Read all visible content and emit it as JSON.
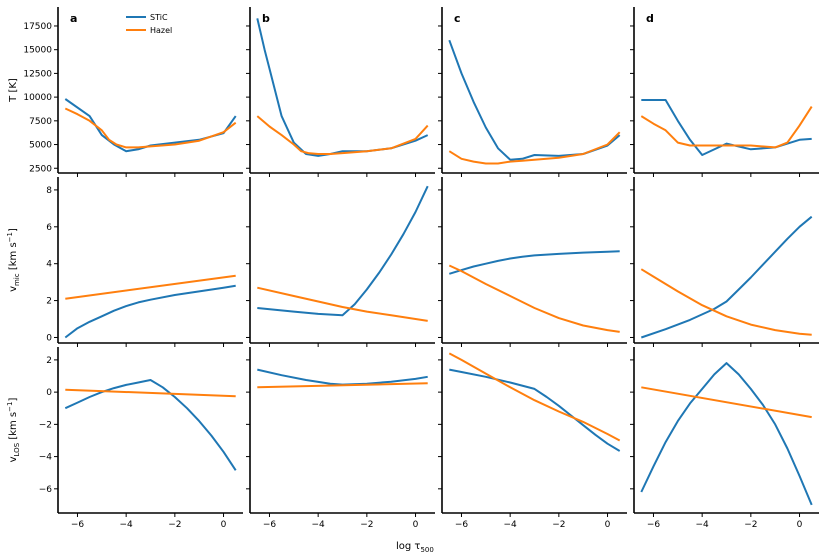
{
  "figure": {
    "xlabel": "log τ",
    "xlabel_sub": "500",
    "xlim": [
      -6.8,
      0.8
    ],
    "xticks": [
      -6,
      -4,
      -2,
      0
    ],
    "xtick_labels": [
      "−6",
      "−4",
      "−2",
      "0"
    ],
    "panel_letters": [
      "a",
      "b",
      "c",
      "d"
    ],
    "legend": [
      {
        "name": "STiC",
        "color": "#1f77b4"
      },
      {
        "name": "Hazel",
        "color": "#ff7f0e"
      }
    ]
  },
  "chart_data": [
    {
      "type": "line",
      "row": "T",
      "ylabel": "T [K]",
      "ylim": [
        2000,
        19500
      ],
      "yticks": [
        2500,
        5000,
        7500,
        10000,
        12500,
        15000,
        17500
      ],
      "ytick_labels": [
        "2500",
        "5000",
        "7500",
        "10000",
        "12500",
        "15000",
        "17500"
      ],
      "panels": [
        {
          "STiC": {
            "x": [
              -6.5,
              -5.5,
              -5.0,
              -4.5,
              -4.0,
              -3.5,
              -3.0,
              -2.0,
              -1.0,
              0.0,
              0.5
            ],
            "y": [
              9800,
              8000,
              6000,
              5000,
              4300,
              4500,
              4900,
              5200,
              5500,
              6200,
              8000
            ]
          },
          "Hazel": {
            "x": [
              -6.5,
              -6.0,
              -5.5,
              -5.0,
              -4.7,
              -4.4,
              -4.0,
              -3.5,
              -3.0,
              -2.0,
              -1.0,
              0.0,
              0.5
            ],
            "y": [
              8800,
              8200,
              7500,
              6500,
              5500,
              5000,
              4700,
              4700,
              4800,
              5000,
              5400,
              6300,
              7300
            ]
          }
        },
        {
          "STiC": {
            "x": [
              -6.5,
              -6.2,
              -6.0,
              -5.5,
              -5.0,
              -4.5,
              -4.0,
              -3.5,
              -3.0,
              -2.0,
              -1.0,
              0.0,
              0.5
            ],
            "y": [
              18300,
              15000,
              13000,
              8000,
              5200,
              4000,
              3800,
              4000,
              4300,
              4300,
              4600,
              5400,
              6000
            ]
          },
          "Hazel": {
            "x": [
              -6.5,
              -6.0,
              -5.5,
              -5.0,
              -4.7,
              -4.4,
              -4.0,
              -3.5,
              -3.0,
              -2.0,
              -1.0,
              0.0,
              0.5
            ],
            "y": [
              8000,
              6900,
              6000,
              5000,
              4300,
              4100,
              4000,
              4000,
              4100,
              4300,
              4600,
              5600,
              7000
            ]
          }
        },
        {
          "STiC": {
            "x": [
              -6.5,
              -6.0,
              -5.5,
              -5.0,
              -4.5,
              -4.0,
              -3.5,
              -3.0,
              -2.0,
              -1.0,
              0.0,
              0.5
            ],
            "y": [
              16000,
              12500,
              9500,
              6800,
              4600,
              3400,
              3500,
              3900,
              3800,
              4000,
              4900,
              6000
            ]
          },
          "Hazel": {
            "x": [
              -6.5,
              -6.0,
              -5.5,
              -5.0,
              -4.5,
              -4.0,
              -3.5,
              -3.0,
              -2.0,
              -1.0,
              0.0,
              0.5
            ],
            "y": [
              4300,
              3500,
              3200,
              3000,
              3000,
              3200,
              3300,
              3400,
              3600,
              4000,
              5000,
              6300
            ]
          }
        },
        {
          "STiC": {
            "x": [
              -6.5,
              -5.5,
              -5.0,
              -4.5,
              -4.0,
              -3.0,
              -2.0,
              -1.0,
              0.0,
              0.5
            ],
            "y": [
              9700,
              9700,
              7500,
              5500,
              3900,
              5100,
              4500,
              4700,
              5500,
              5600
            ]
          },
          "Hazel": {
            "x": [
              -6.5,
              -6.0,
              -5.5,
              -5.0,
              -4.5,
              -4.0,
              -3.0,
              -2.0,
              -1.0,
              -0.5,
              0.0,
              0.5
            ],
            "y": [
              8000,
              7200,
              6500,
              5200,
              4900,
              4900,
              4900,
              4900,
              4700,
              5200,
              7000,
              9000
            ]
          }
        }
      ]
    },
    {
      "type": "line",
      "row": "vmic",
      "ylabel": "v",
      "ylabel_sub": "mic",
      "ylabel_unit": " [km s",
      "ylabel_sup": "−1",
      "ylabel_end": "]",
      "ylim": [
        -0.3,
        8.7
      ],
      "yticks": [
        0,
        2,
        4,
        6,
        8
      ],
      "ytick_labels": [
        "0",
        "2",
        "4",
        "6",
        "8"
      ],
      "panels": [
        {
          "STiC": {
            "x": [
              -6.5,
              -6.0,
              -5.5,
              -5.0,
              -4.5,
              -4.0,
              -3.5,
              -3.0,
              -2.0,
              -1.0,
              0.0,
              0.5
            ],
            "y": [
              0.0,
              0.5,
              0.85,
              1.15,
              1.45,
              1.7,
              1.9,
              2.05,
              2.3,
              2.5,
              2.7,
              2.8
            ]
          },
          "Hazel": {
            "x": [
              -6.5,
              0.5
            ],
            "y": [
              2.1,
              3.35
            ]
          }
        },
        {
          "STiC": {
            "x": [
              -6.5,
              -5.0,
              -4.0,
              -3.0,
              -2.5,
              -2.0,
              -1.5,
              -1.0,
              -0.5,
              0.0,
              0.5
            ],
            "y": [
              1.6,
              1.4,
              1.28,
              1.2,
              1.8,
              2.6,
              3.5,
              4.5,
              5.6,
              6.8,
              8.2
            ]
          },
          "Hazel": {
            "x": [
              -6.5,
              -5.0,
              -4.0,
              -3.0,
              -2.0,
              -1.0,
              0.0,
              0.5
            ],
            "y": [
              2.7,
              2.25,
              1.95,
              1.65,
              1.4,
              1.2,
              1.0,
              0.9
            ]
          }
        },
        {
          "STiC": {
            "x": [
              -6.5,
              -6.0,
              -5.5,
              -5.0,
              -4.5,
              -4.0,
              -3.5,
              -3.0,
              -2.0,
              -1.0,
              0.0,
              0.5
            ],
            "y": [
              3.45,
              3.65,
              3.85,
              4.0,
              4.15,
              4.28,
              4.38,
              4.45,
              4.53,
              4.6,
              4.65,
              4.67
            ]
          },
          "Hazel": {
            "x": [
              -6.5,
              -6.0,
              -5.0,
              -4.0,
              -3.0,
              -2.0,
              -1.0,
              0.0,
              0.5
            ],
            "y": [
              3.9,
              3.6,
              2.9,
              2.25,
              1.6,
              1.05,
              0.65,
              0.4,
              0.3
            ]
          }
        },
        {
          "STiC": {
            "x": [
              -6.5,
              -5.5,
              -4.5,
              -3.5,
              -3.0,
              -2.5,
              -2.0,
              -1.5,
              -1.0,
              -0.5,
              0.0,
              0.5
            ],
            "y": [
              0.0,
              0.45,
              0.95,
              1.55,
              1.95,
              2.6,
              3.25,
              3.95,
              4.65,
              5.35,
              6.0,
              6.55
            ]
          },
          "Hazel": {
            "x": [
              -6.5,
              -6.0,
              -5.0,
              -4.0,
              -3.0,
              -2.0,
              -1.0,
              0.0,
              0.5
            ],
            "y": [
              3.7,
              3.3,
              2.5,
              1.75,
              1.15,
              0.7,
              0.4,
              0.2,
              0.15
            ]
          }
        }
      ]
    },
    {
      "type": "line",
      "row": "vlos",
      "ylabel": "v",
      "ylabel_sub": "LOS",
      "ylabel_unit": " [km s",
      "ylabel_sup": "−1",
      "ylabel_end": "]",
      "ylim": [
        -7.5,
        2.8
      ],
      "yticks": [
        -6,
        -4,
        -2,
        0,
        2
      ],
      "ytick_labels": [
        "−6",
        "−4",
        "−2",
        "0",
        "2"
      ],
      "panels": [
        {
          "STiC": {
            "x": [
              -6.5,
              -6.0,
              -5.5,
              -5.0,
              -4.5,
              -4.0,
              -3.5,
              -3.0,
              -2.5,
              -2.0,
              -1.5,
              -1.0,
              -0.5,
              0.0,
              0.5
            ],
            "y": [
              -1.0,
              -0.65,
              -0.3,
              0.0,
              0.25,
              0.45,
              0.6,
              0.75,
              0.3,
              -0.3,
              -1.0,
              -1.8,
              -2.7,
              -3.7,
              -4.85
            ]
          },
          "Hazel": {
            "x": [
              -6.5,
              0.5
            ],
            "y": [
              0.15,
              -0.25
            ]
          }
        },
        {
          "STiC": {
            "x": [
              -6.5,
              -5.5,
              -4.5,
              -3.5,
              -3.0,
              -2.0,
              -1.0,
              0.0,
              0.5
            ],
            "y": [
              1.4,
              1.05,
              0.75,
              0.52,
              0.47,
              0.52,
              0.65,
              0.82,
              0.95
            ]
          },
          "Hazel": {
            "x": [
              -6.5,
              0.5
            ],
            "y": [
              0.3,
              0.55
            ]
          }
        },
        {
          "STiC": {
            "x": [
              -6.5,
              -6.0,
              -5.0,
              -4.0,
              -3.0,
              -2.5,
              -2.0,
              -1.5,
              -1.0,
              -0.5,
              0.0,
              0.5
            ],
            "y": [
              1.4,
              1.25,
              0.95,
              0.6,
              0.2,
              -0.3,
              -0.85,
              -1.45,
              -2.05,
              -2.65,
              -3.2,
              -3.65
            ]
          },
          "Hazel": {
            "x": [
              -6.5,
              -6.0,
              -5.0,
              -4.0,
              -3.0,
              -2.0,
              -1.0,
              0.0,
              0.5
            ],
            "y": [
              2.4,
              2.0,
              1.15,
              0.3,
              -0.5,
              -1.2,
              -1.85,
              -2.6,
              -3.0
            ]
          }
        },
        {
          "STiC": {
            "x": [
              -6.5,
              -6.0,
              -5.5,
              -5.0,
              -4.5,
              -4.0,
              -3.5,
              -3.0,
              -2.5,
              -2.0,
              -1.5,
              -1.0,
              -0.5,
              0.0,
              0.5
            ],
            "y": [
              -6.2,
              -4.6,
              -3.1,
              -1.8,
              -0.7,
              0.2,
              1.1,
              1.8,
              1.1,
              0.2,
              -0.8,
              -2.0,
              -3.5,
              -5.2,
              -7.0
            ]
          },
          "Hazel": {
            "x": [
              -6.5,
              0.5
            ],
            "y": [
              0.3,
              -1.55
            ]
          }
        }
      ]
    }
  ]
}
